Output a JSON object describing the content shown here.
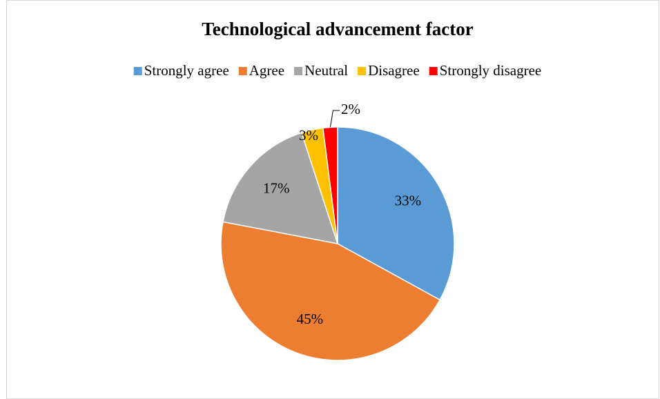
{
  "chart_data": {
    "type": "pie",
    "title": "Technological advancement factor",
    "categories": [
      "Strongly agree",
      "Agree",
      "Neutral",
      "Disagree",
      "Strongly disagree"
    ],
    "values": [
      33,
      45,
      17,
      3,
      2
    ],
    "value_labels": [
      "33%",
      "45%",
      "17%",
      "3%",
      "2%"
    ],
    "colors": [
      "#5b9bd5",
      "#ed7d31",
      "#a5a5a5",
      "#ffc000",
      "#ff0000"
    ],
    "legend": "top"
  }
}
